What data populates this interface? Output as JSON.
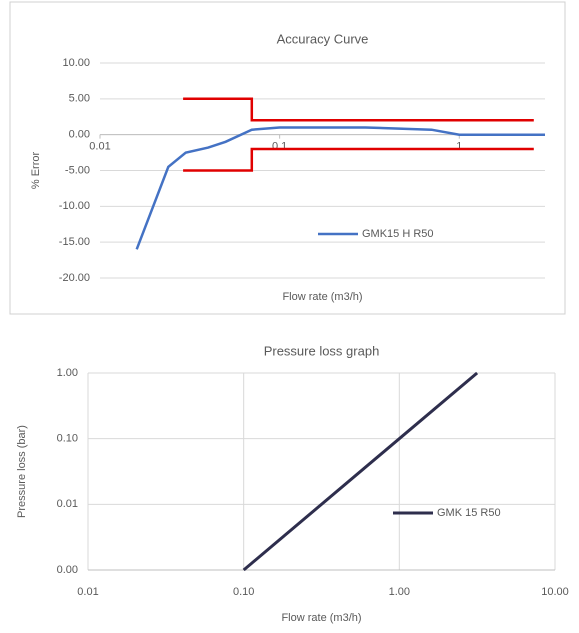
{
  "chart_data": [
    {
      "type": "line",
      "title": "Accuracy Curve",
      "x_label": "Flow rate (m3/h)",
      "y_label": "% Error",
      "xlog": true,
      "xlim": [
        0.01,
        3
      ],
      "xticks": [
        0.01,
        0.1,
        1
      ],
      "ylim": [
        -20,
        10
      ],
      "yticks": [
        {
          "value": 10,
          "label": "10.00"
        },
        {
          "value": 5,
          "label": "5.00"
        },
        {
          "value": 0,
          "label": "0.00"
        },
        {
          "value": -5,
          "label": "-5.00"
        },
        {
          "value": -10,
          "label": "-10.00"
        },
        {
          "value": -15,
          "label": "-15.00"
        },
        {
          "value": -20,
          "label": "-20.00"
        }
      ],
      "grid": true,
      "legend": "right",
      "series": [
        {
          "name": "GMK15 H R50",
          "color": "#4472c4",
          "x": [
            0.016,
            0.024,
            0.03,
            0.04,
            0.05,
            0.07,
            0.1,
            0.3,
            0.7,
            1,
            3
          ],
          "values": [
            -16,
            -4.5,
            -2.5,
            -1.8,
            -1,
            0.7,
            1,
            1,
            0.7,
            0,
            0
          ]
        },
        {
          "color": "#e00000",
          "x": [
            0.029,
            0.07,
            0.07,
            2.6
          ],
          "values": [
            5,
            5,
            2,
            2
          ]
        },
        {
          "color": "#e00000",
          "x": [
            0.029,
            0.07,
            0.07,
            2.6
          ],
          "values": [
            -5,
            -5,
            -2,
            -2
          ]
        }
      ]
    },
    {
      "type": "line",
      "title": "Pressure loss graph",
      "x_label": "Flow rate (m3/h)",
      "y_label": "Pressure loss (bar)",
      "xlog": true,
      "ylog": true,
      "xlim": [
        0.01,
        10
      ],
      "xticks": [
        0.01,
        {
          "value": 0.1,
          "label": "0.10"
        },
        {
          "value": 1,
          "label": "1.00"
        },
        {
          "value": 10,
          "label": "10.00"
        }
      ],
      "ylim": [
        0.001,
        1
      ],
      "yticks": [
        {
          "value": 0.001,
          "label": "0.00"
        },
        0.01,
        {
          "value": 0.1,
          "label": "0.10"
        },
        {
          "value": 1,
          "label": "1.00"
        }
      ],
      "grid": true,
      "legend": "right",
      "series": [
        {
          "name": "GMK 15 R50",
          "color": "#2e2e4d",
          "x": [
            0.1,
            3.16
          ],
          "values": [
            0.001,
            1
          ]
        }
      ]
    }
  ]
}
